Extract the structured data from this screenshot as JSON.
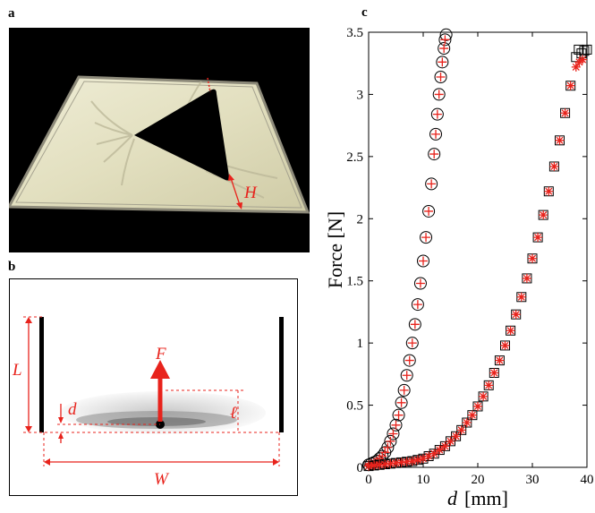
{
  "panels": {
    "a": "a",
    "b": "b",
    "c": "c"
  },
  "photo": {
    "label_H": "H",
    "colors": {
      "background": "#000000",
      "sheet": "#e3e0c2",
      "annotation": "#e8231c"
    }
  },
  "schematic": {
    "label_F": "F",
    "label_L": "L",
    "label_d": "d",
    "label_ell": "ℓ",
    "label_W": "W",
    "colors": {
      "annotation": "#e8231c",
      "frame": "#000000"
    }
  },
  "chart_data": {
    "type": "scatter",
    "xlabel_var": "d",
    "xlabel_unit": "[mm]",
    "ylabel": "Force [N]",
    "xlim": [
      0,
      40
    ],
    "ylim": [
      0,
      3.5
    ],
    "xticks": [
      0,
      10,
      20,
      30,
      40
    ],
    "yticks": [
      0,
      0.5,
      1,
      1.5,
      2,
      2.5,
      3,
      3.5
    ],
    "grid": false,
    "series": [
      {
        "marker": "circle",
        "color": "#000000",
        "x": [
          0.0,
          0.5,
          1.0,
          1.5,
          2.0,
          2.5,
          3.0,
          3.5,
          4.0,
          4.5,
          5.0,
          5.5,
          6.0,
          6.5,
          7.0,
          7.5,
          8.0,
          8.5,
          9.0,
          9.5,
          10.0,
          10.5,
          11.0,
          11.5,
          12.0,
          12.3,
          12.6,
          12.9,
          13.2,
          13.5,
          13.8,
          14.0,
          14.2
        ],
        "y": [
          0.02,
          0.03,
          0.04,
          0.05,
          0.07,
          0.09,
          0.12,
          0.16,
          0.21,
          0.27,
          0.34,
          0.42,
          0.52,
          0.62,
          0.74,
          0.86,
          1.0,
          1.15,
          1.31,
          1.48,
          1.66,
          1.85,
          2.06,
          2.28,
          2.52,
          2.68,
          2.84,
          3.0,
          3.14,
          3.26,
          3.37,
          3.44,
          3.48
        ]
      },
      {
        "marker": "plus",
        "color": "#e8231c",
        "x": [
          0.0,
          0.5,
          1.0,
          1.5,
          2.0,
          2.5,
          3.0,
          3.5,
          4.0,
          4.5,
          5.0,
          5.5,
          6.0,
          6.5,
          7.0,
          7.5,
          8.0,
          8.5,
          9.0,
          9.5,
          10.0,
          10.5,
          11.0,
          11.5,
          12.0,
          12.3,
          12.6,
          12.9,
          13.2,
          13.5,
          13.8,
          14.0
        ],
        "y": [
          0.02,
          0.03,
          0.04,
          0.05,
          0.07,
          0.09,
          0.12,
          0.16,
          0.21,
          0.27,
          0.34,
          0.42,
          0.52,
          0.62,
          0.74,
          0.86,
          1.0,
          1.15,
          1.31,
          1.48,
          1.66,
          1.85,
          2.06,
          2.28,
          2.52,
          2.68,
          2.84,
          3.0,
          3.14,
          3.26,
          3.37,
          3.44
        ]
      },
      {
        "marker": "square",
        "color": "#000000",
        "x": [
          0.0,
          1.0,
          2.0,
          3.0,
          4.0,
          5.0,
          6.0,
          7.0,
          8.0,
          9.0,
          10.0,
          11.0,
          12.0,
          13.0,
          14.0,
          15.0,
          16.0,
          17.0,
          18.0,
          19.0,
          20.0,
          21.0,
          22.0,
          23.0,
          24.0,
          25.0,
          26.0,
          27.0,
          28.0,
          29.0,
          30.0,
          31.0,
          32.0,
          33.0,
          34.0,
          35.0,
          36.0,
          37.0,
          38.0,
          38.5,
          39.0,
          39.5,
          40.0
        ],
        "y": [
          0.01,
          0.015,
          0.02,
          0.025,
          0.03,
          0.035,
          0.04,
          0.045,
          0.05,
          0.06,
          0.07,
          0.09,
          0.11,
          0.14,
          0.17,
          0.21,
          0.25,
          0.3,
          0.36,
          0.42,
          0.49,
          0.57,
          0.66,
          0.76,
          0.86,
          0.98,
          1.1,
          1.23,
          1.37,
          1.52,
          1.68,
          1.85,
          2.03,
          2.22,
          2.42,
          2.63,
          2.85,
          3.07,
          3.3,
          3.36,
          3.33,
          3.35,
          3.36
        ]
      },
      {
        "marker": "asterisk",
        "color": "#e8231c",
        "x": [
          0.0,
          1.0,
          2.0,
          3.0,
          4.0,
          5.0,
          6.0,
          7.0,
          8.0,
          9.0,
          10.0,
          11.0,
          12.0,
          13.0,
          14.0,
          15.0,
          16.0,
          17.0,
          18.0,
          19.0,
          20.0,
          21.0,
          22.0,
          23.0,
          24.0,
          25.0,
          26.0,
          27.0,
          28.0,
          29.0,
          30.0,
          31.0,
          32.0,
          33.0,
          34.0,
          35.0,
          36.0,
          37.0,
          38.0,
          38.6,
          39.2
        ],
        "y": [
          0.01,
          0.015,
          0.02,
          0.025,
          0.03,
          0.035,
          0.04,
          0.045,
          0.05,
          0.06,
          0.07,
          0.09,
          0.11,
          0.14,
          0.17,
          0.21,
          0.25,
          0.3,
          0.36,
          0.42,
          0.49,
          0.57,
          0.66,
          0.76,
          0.86,
          0.98,
          1.1,
          1.23,
          1.37,
          1.52,
          1.68,
          1.85,
          2.03,
          2.22,
          2.42,
          2.63,
          2.85,
          3.07,
          3.22,
          3.26,
          3.28
        ]
      }
    ]
  }
}
